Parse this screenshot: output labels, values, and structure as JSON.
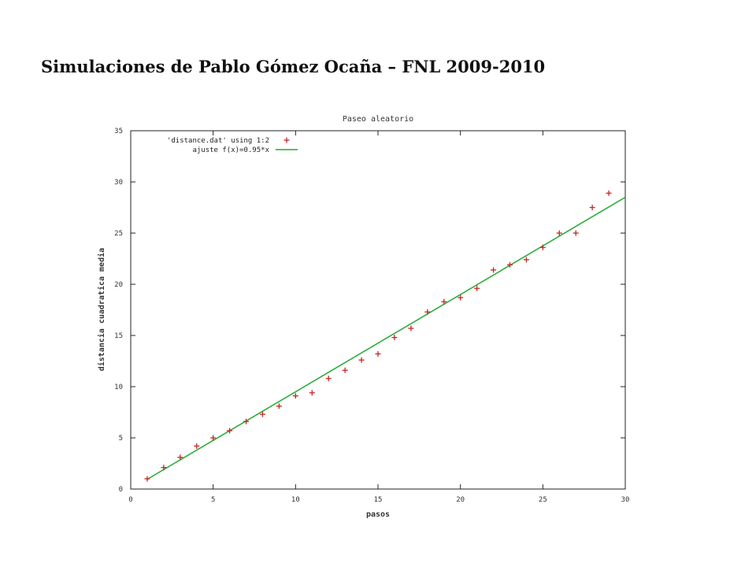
{
  "slide": {
    "heading": "Simulaciones de Pablo Gómez Ocaña – FNL 2009-2010"
  },
  "chart_data": {
    "type": "scatter",
    "title": "Paseo aleatorio",
    "xlabel": "pasos",
    "ylabel": "distancia cuadratica media",
    "xlim": [
      0,
      30
    ],
    "ylim": [
      0,
      35
    ],
    "xticks": [
      0,
      5,
      10,
      15,
      20,
      25,
      30
    ],
    "yticks": [
      0,
      5,
      10,
      15,
      20,
      25,
      30,
      35
    ],
    "legend_position": "top-left",
    "series": [
      {
        "name": "'distance.dat' using 1:2",
        "kind": "points",
        "marker": "+",
        "color": "#cc2222",
        "x": [
          1,
          2,
          3,
          4,
          5,
          6,
          7,
          8,
          9,
          10,
          11,
          12,
          13,
          14,
          15,
          16,
          17,
          18,
          19,
          20,
          21,
          22,
          23,
          24,
          25,
          26,
          27,
          28,
          29
        ],
        "y": [
          1.0,
          2.1,
          3.1,
          4.2,
          5.0,
          5.7,
          6.6,
          7.3,
          8.1,
          9.1,
          9.4,
          10.8,
          11.6,
          12.6,
          13.2,
          14.8,
          15.7,
          17.3,
          18.3,
          18.7,
          19.6,
          21.4,
          21.9,
          22.4,
          23.6,
          25.0,
          25.0,
          27.5,
          28.9
        ]
      },
      {
        "name": "ajuste f(x)=0.95*x",
        "kind": "line",
        "color": "#22aa33",
        "slope": 0.95,
        "x_range": [
          1,
          30
        ]
      }
    ]
  }
}
